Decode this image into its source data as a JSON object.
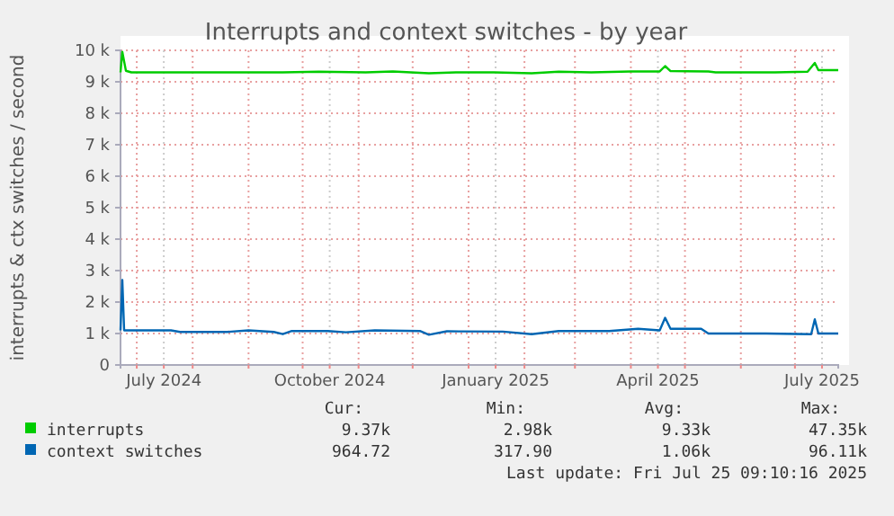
{
  "chart_data": {
    "type": "line",
    "title": "Interrupts and context switches - by year",
    "ylabel": "interrupts & ctx switches / second",
    "xlim": [
      "2024-06-22",
      "2025-07-25"
    ],
    "xticks": [
      {
        "value": "2024-07-01",
        "label": null
      },
      {
        "value": "2024-07-16",
        "label": "July 2024"
      },
      {
        "value": "2024-08-01",
        "label": null
      },
      {
        "value": "2024-09-01",
        "label": null
      },
      {
        "value": "2024-10-01",
        "label": null
      },
      {
        "value": "2024-10-16",
        "label": "October 2024"
      },
      {
        "value": "2024-11-01",
        "label": null
      },
      {
        "value": "2024-12-01",
        "label": null
      },
      {
        "value": "2025-01-01",
        "label": null
      },
      {
        "value": "2025-01-16",
        "label": "January 2025"
      },
      {
        "value": "2025-02-01",
        "label": null
      },
      {
        "value": "2025-03-01",
        "label": null
      },
      {
        "value": "2025-04-01",
        "label": null
      },
      {
        "value": "2025-04-16",
        "label": "April 2025"
      },
      {
        "value": "2025-05-01",
        "label": null
      },
      {
        "value": "2025-06-01",
        "label": null
      },
      {
        "value": "2025-07-01",
        "label": null
      },
      {
        "value": "2025-07-16",
        "label": "July 2025"
      }
    ],
    "ylim": [
      0,
      10000
    ],
    "yticks": [
      0,
      {
        "value": 1000,
        "label": "1 k"
      },
      {
        "value": 2000,
        "label": "2 k"
      },
      {
        "value": 3000,
        "label": "3 k"
      },
      {
        "value": 4000,
        "label": "4 k"
      },
      {
        "value": 5000,
        "label": "5 k"
      },
      {
        "value": 6000,
        "label": "6 k"
      },
      {
        "value": 7000,
        "label": "7 k"
      },
      {
        "value": 8000,
        "label": "8 k"
      },
      {
        "value": 9000,
        "label": "9 k"
      },
      {
        "value": 10000,
        "label": "10 k"
      }
    ],
    "grid": true,
    "legend": "bottom",
    "marker": "none",
    "line_style": "solid",
    "series": [
      {
        "name": "interrupts",
        "color": "#00cc00",
        "x": [
          "2024-06-22",
          "2024-06-23",
          "2024-06-25",
          "2024-06-28",
          "2024-08-15",
          "2024-09-20",
          "2024-10-10",
          "2024-11-05",
          "2024-11-20",
          "2024-12-10",
          "2024-12-25",
          "2025-01-15",
          "2025-02-05",
          "2025-02-20",
          "2025-03-10",
          "2025-04-01",
          "2025-04-17",
          "2025-04-20",
          "2025-04-23",
          "2025-05-14",
          "2025-05-18",
          "2025-06-20",
          "2025-07-08",
          "2025-07-12",
          "2025-07-14",
          "2025-07-25"
        ],
        "values": [
          9300,
          9950,
          9350,
          9300,
          9300,
          9300,
          9320,
          9300,
          9330,
          9270,
          9300,
          9300,
          9270,
          9320,
          9300,
          9330,
          9330,
          9500,
          9340,
          9330,
          9300,
          9300,
          9320,
          9600,
          9370,
          9370
        ]
      },
      {
        "name": "context switches",
        "color": "#0066b3",
        "x": [
          "2024-06-22",
          "2024-06-23",
          "2024-06-24",
          "2024-06-26",
          "2024-07-20",
          "2024-07-25",
          "2024-08-20",
          "2024-09-01",
          "2024-09-15",
          "2024-09-20",
          "2024-09-25",
          "2024-10-15",
          "2024-10-25",
          "2024-11-10",
          "2024-12-05",
          "2024-12-10",
          "2024-12-20",
          "2025-01-20",
          "2025-02-05",
          "2025-02-20",
          "2025-03-20",
          "2025-04-05",
          "2025-04-17",
          "2025-04-20",
          "2025-04-23",
          "2025-05-10",
          "2025-05-14",
          "2025-06-15",
          "2025-07-10",
          "2025-07-12",
          "2025-07-14",
          "2025-07-25"
        ],
        "values": [
          1100,
          2700,
          1100,
          1100,
          1100,
          1050,
          1050,
          1100,
          1050,
          980,
          1080,
          1080,
          1040,
          1100,
          1080,
          960,
          1070,
          1060,
          980,
          1080,
          1080,
          1150,
          1100,
          1500,
          1150,
          1150,
          1000,
          1000,
          980,
          1450,
          1000,
          1000
        ]
      }
    ],
    "annotations": [
      "Cur:",
      "Min:",
      "Avg:",
      "Max:",
      "9.37k",
      "2.98k",
      "9.33k",
      "47.35k",
      "964.72",
      "317.90",
      "1.06k",
      "96.11k",
      "Last update: Fri Jul 25 09:10:16 2025"
    ]
  }
}
